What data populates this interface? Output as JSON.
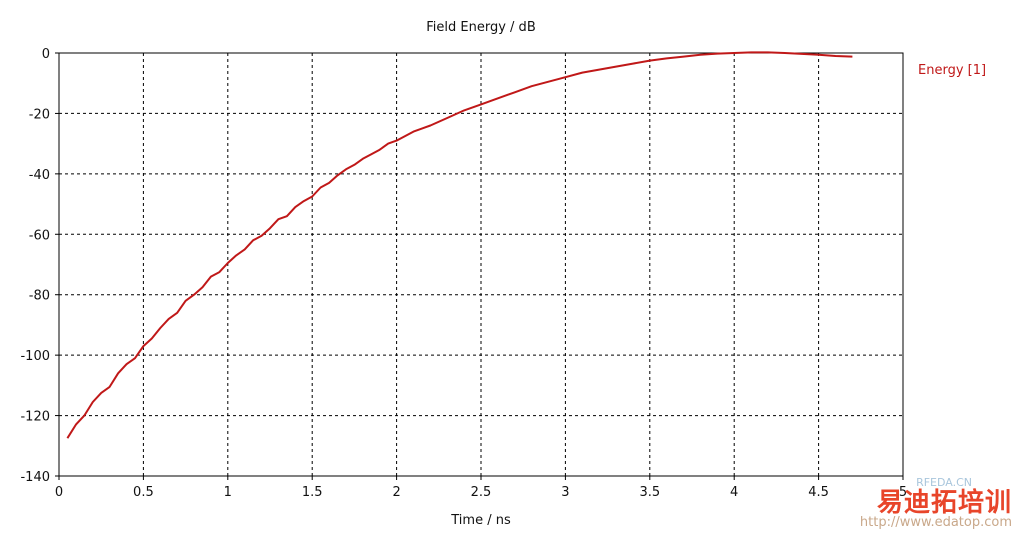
{
  "chart_data": {
    "type": "line",
    "title": "Field Energy / dB",
    "xlabel": "Time / ns",
    "ylabel": "",
    "xlim": [
      0,
      5
    ],
    "ylim": [
      -140,
      0
    ],
    "xticks": [
      0,
      0.5,
      1,
      1.5,
      2,
      2.5,
      3,
      3.5,
      4,
      4.5,
      5
    ],
    "yticks": [
      0,
      -20,
      -40,
      -60,
      -80,
      -100,
      -120,
      -140
    ],
    "grid": true,
    "legend_position": "right",
    "series": [
      {
        "name": "Energy [1]",
        "color": "#c01818",
        "x": [
          0.05,
          0.1,
          0.15,
          0.2,
          0.25,
          0.3,
          0.35,
          0.4,
          0.45,
          0.5,
          0.55,
          0.6,
          0.65,
          0.7,
          0.75,
          0.8,
          0.85,
          0.9,
          0.95,
          1.0,
          1.05,
          1.1,
          1.15,
          1.2,
          1.25,
          1.3,
          1.35,
          1.4,
          1.45,
          1.5,
          1.55,
          1.6,
          1.65,
          1.7,
          1.75,
          1.8,
          1.85,
          1.9,
          1.95,
          2.0,
          2.1,
          2.2,
          2.3,
          2.4,
          2.5,
          2.6,
          2.7,
          2.8,
          2.9,
          3.0,
          3.1,
          3.2,
          3.3,
          3.4,
          3.5,
          3.6,
          3.7,
          3.8,
          3.9,
          4.0,
          4.1,
          4.2,
          4.3,
          4.4,
          4.5,
          4.6,
          4.7
        ],
        "y": [
          -127.5,
          -123,
          -120,
          -115.5,
          -112.5,
          -110.5,
          -106,
          -103,
          -101,
          -97,
          -94.5,
          -91,
          -88,
          -86,
          -82,
          -80,
          -77.5,
          -74,
          -72.5,
          -69.5,
          -67,
          -65,
          -62,
          -60.5,
          -58,
          -55,
          -54,
          -51,
          -49,
          -47.5,
          -44.5,
          -43,
          -40.5,
          -38.5,
          -37,
          -35,
          -33.5,
          -32,
          -30,
          -29,
          -26,
          -24,
          -21.5,
          -19,
          -17,
          -15,
          -13,
          -11,
          -9.5,
          -8,
          -6.5,
          -5.5,
          -4.5,
          -3.5,
          -2.5,
          -1.8,
          -1.2,
          -0.6,
          -0.2,
          0,
          0.2,
          0.2,
          0,
          -0.3,
          -0.6,
          -1.0,
          -1.2
        ]
      }
    ]
  },
  "watermark": {
    "brand": "易迪拓培训",
    "site": "http://www.edatop.com",
    "small": "RFEDA.CN"
  }
}
